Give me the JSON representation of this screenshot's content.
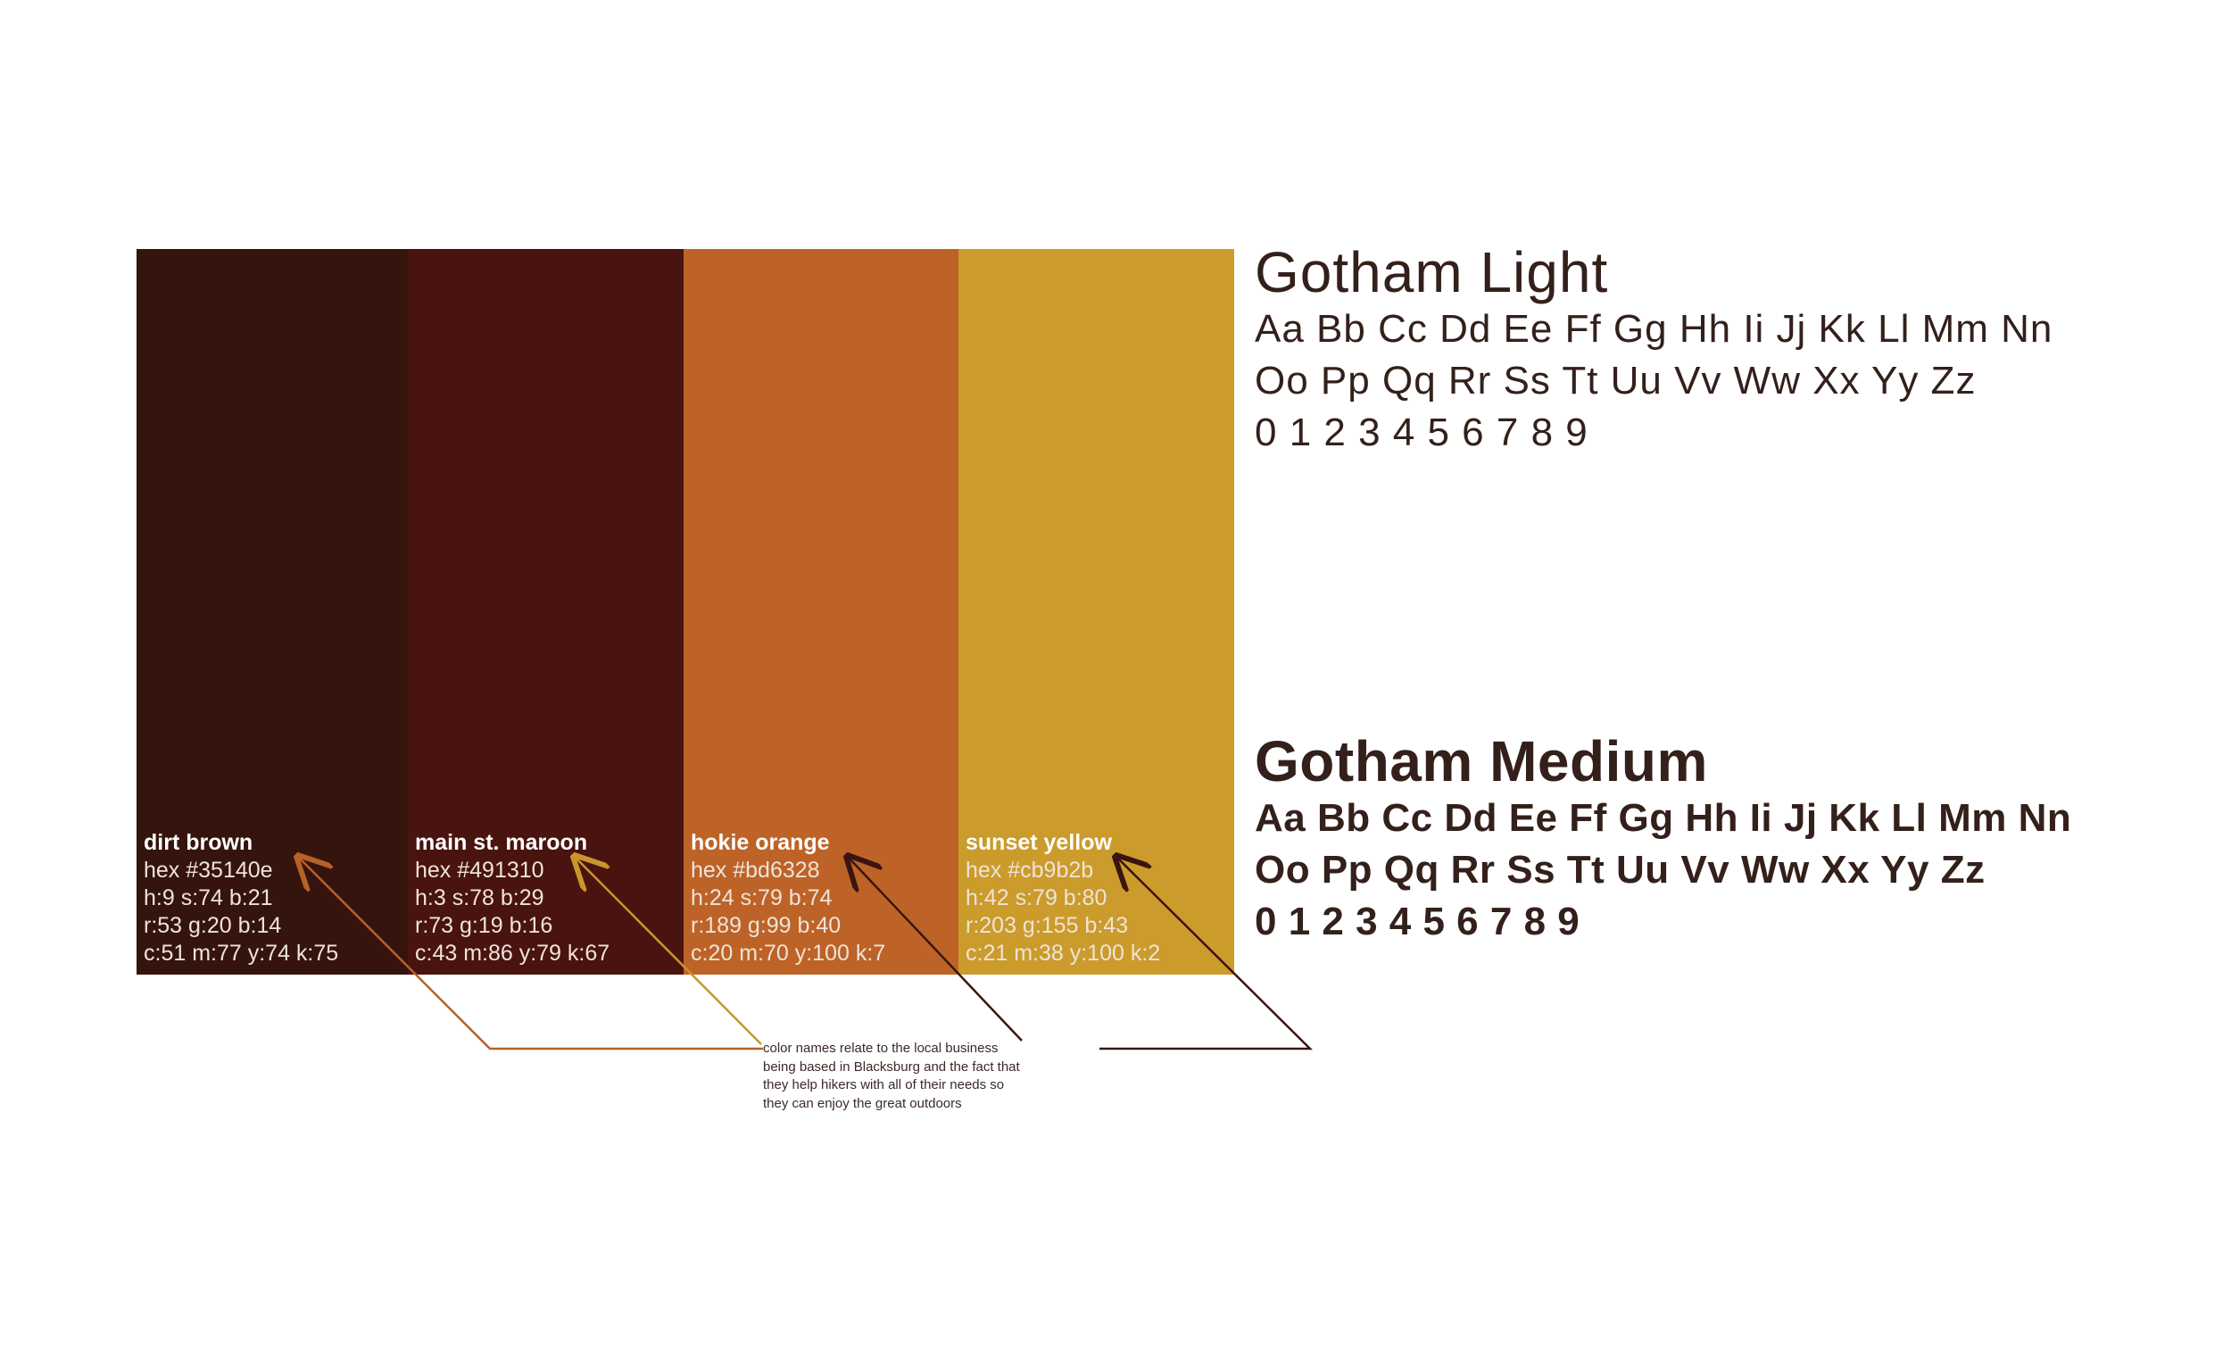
{
  "swatches": [
    {
      "name": "dirt brown",
      "color": "#35140e",
      "lines": [
        "hex #35140e",
        "h:9 s:74 b:21",
        "r:53 g:20 b:14",
        "c:51 m:77 y:74 k:75"
      ]
    },
    {
      "name": "main st. maroon",
      "color": "#491310",
      "lines": [
        "hex #491310",
        "h:3 s:78 b:29",
        "r:73 g:19 b:16",
        "c:43 m:86 y:79 k:67"
      ]
    },
    {
      "name": "hokie orange",
      "color": "#bd6328",
      "lines": [
        "hex #bd6328",
        "h:24 s:79 b:74",
        "r:189 g:99 b:40",
        "c:20 m:70 y:100 k:7"
      ]
    },
    {
      "name": "sunset yellow",
      "color": "#cb9b2b",
      "lines": [
        "hex #cb9b2b",
        "h:42 s:79 b:80",
        "r:203 g:155 b:43",
        "c:21 m:38 y:100 k:2"
      ]
    }
  ],
  "typography": [
    {
      "title": "Gotham Light",
      "rows": [
        "Aa Bb Cc Dd Ee Ff Gg Hh Ii Jj Kk Ll Mm Nn",
        "Oo Pp Qq Rr Ss Tt Uu Vv Ww Xx Yy Zz",
        "0 1 2 3 4 5 6 7 8 9"
      ]
    },
    {
      "title": "Gotham Medium",
      "rows": [
        "Aa Bb Cc Dd Ee Ff Gg Hh Ii Jj Kk Ll Mm Nn",
        "Oo Pp Qq Rr Ss Tt Uu Vv Ww Xx Yy Zz",
        "0 1 2 3 4 5 6 7 8 9"
      ]
    }
  ],
  "note": {
    "lines": [
      "color names relate to the local business",
      "being based in Blacksburg and the fact that",
      "they help hikers with all of their needs so",
      "they can enjoy the great outdoors"
    ]
  }
}
